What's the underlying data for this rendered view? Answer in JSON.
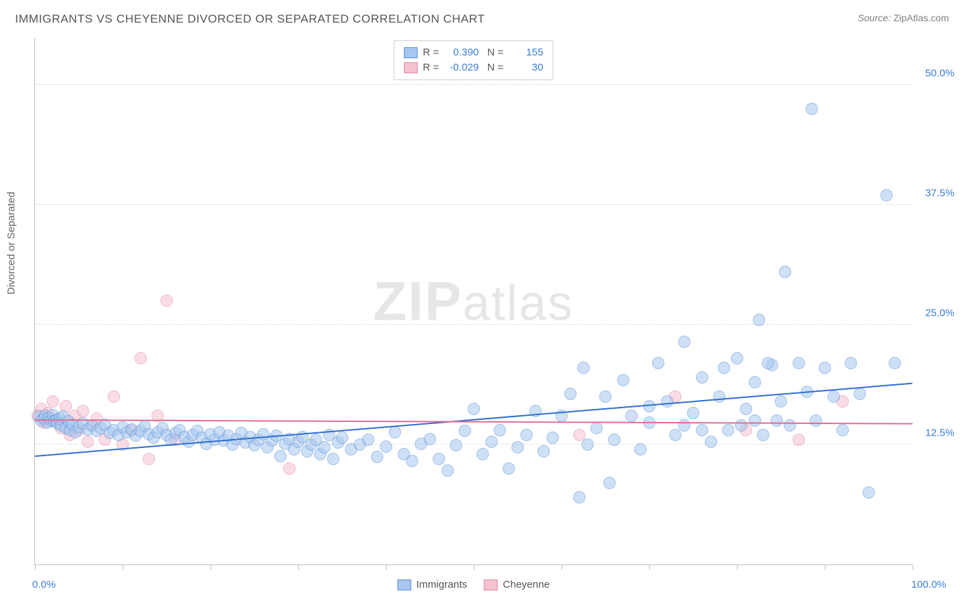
{
  "title": "IMMIGRANTS VS CHEYENNE DIVORCED OR SEPARATED CORRELATION CHART",
  "source": {
    "label": "Source:",
    "value": "ZipAtlas.com"
  },
  "ylabel": "Divorced or Separated",
  "watermark": {
    "bold": "ZIP",
    "light": "atlas"
  },
  "chart": {
    "type": "scatter",
    "xlim": [
      0,
      100
    ],
    "ylim": [
      0,
      55
    ],
    "yticks": [
      {
        "v": 12.5,
        "label": "12.5%"
      },
      {
        "v": 25.0,
        "label": "25.0%"
      },
      {
        "v": 37.5,
        "label": "37.5%"
      },
      {
        "v": 50.0,
        "label": "50.0%"
      }
    ],
    "xticks_minor_step": 10,
    "x_start_label": "0.0%",
    "x_end_label": "100.0%",
    "background_color": "#ffffff",
    "grid_color": "#dddddd",
    "axis_color": "#c0c0c0",
    "tick_label_color": "#3b7dd8",
    "marker_radius": 9,
    "marker_opacity": 0.55,
    "series": [
      {
        "key": "immigrants",
        "label": "Immigrants",
        "r": "0.390",
        "n": "155",
        "fill": "#a7c7f0",
        "stroke": "#5a8fd6",
        "trend": {
          "y0": 11.2,
          "y1": 18.8,
          "color": "#2f6fd0",
          "width": 2
        },
        "points": [
          [
            0.5,
            15.4
          ],
          [
            0.7,
            15.0
          ],
          [
            1.0,
            15.2
          ],
          [
            1.2,
            15.5
          ],
          [
            1.4,
            14.8
          ],
          [
            1.6,
            15.3
          ],
          [
            1.8,
            15.0
          ],
          [
            2.0,
            15.6
          ],
          [
            2.2,
            14.9
          ],
          [
            2.4,
            15.1
          ],
          [
            2.6,
            14.7
          ],
          [
            2.8,
            15.2
          ],
          [
            3.0,
            14.5
          ],
          [
            3.2,
            15.4
          ],
          [
            3.5,
            14.2
          ],
          [
            3.8,
            14.9
          ],
          [
            4.0,
            14.0
          ],
          [
            4.3,
            14.6
          ],
          [
            4.6,
            13.8
          ],
          [
            5.0,
            14.3
          ],
          [
            5.5,
            14.7
          ],
          [
            6.0,
            14.1
          ],
          [
            6.5,
            14.5
          ],
          [
            7.0,
            13.9
          ],
          [
            7.5,
            14.2
          ],
          [
            8.0,
            14.6
          ],
          [
            8.5,
            13.7
          ],
          [
            9.0,
            14.0
          ],
          [
            9.5,
            13.5
          ],
          [
            10.0,
            14.3
          ],
          [
            10.5,
            13.8
          ],
          [
            11.0,
            14.1
          ],
          [
            11.5,
            13.4
          ],
          [
            12.0,
            13.9
          ],
          [
            12.5,
            14.4
          ],
          [
            13.0,
            13.6
          ],
          [
            13.5,
            13.2
          ],
          [
            14.0,
            13.8
          ],
          [
            14.5,
            14.2
          ],
          [
            15.0,
            13.5
          ],
          [
            15.5,
            13.0
          ],
          [
            16.0,
            13.7
          ],
          [
            16.5,
            14.0
          ],
          [
            17.0,
            13.3
          ],
          [
            17.5,
            12.8
          ],
          [
            18.0,
            13.5
          ],
          [
            18.5,
            13.9
          ],
          [
            19.0,
            13.2
          ],
          [
            19.5,
            12.6
          ],
          [
            20.0,
            13.6
          ],
          [
            20.5,
            13.0
          ],
          [
            21.0,
            13.8
          ],
          [
            21.5,
            12.9
          ],
          [
            22.0,
            13.4
          ],
          [
            22.5,
            12.5
          ],
          [
            23.0,
            13.1
          ],
          [
            23.5,
            13.7
          ],
          [
            24.0,
            12.7
          ],
          [
            24.5,
            13.3
          ],
          [
            25.0,
            12.4
          ],
          [
            25.5,
            13.0
          ],
          [
            26.0,
            13.6
          ],
          [
            26.5,
            12.2
          ],
          [
            27.0,
            12.9
          ],
          [
            27.5,
            13.4
          ],
          [
            28.0,
            11.3
          ],
          [
            28.5,
            12.6
          ],
          [
            29.0,
            13.1
          ],
          [
            29.5,
            12.0
          ],
          [
            30.0,
            12.8
          ],
          [
            30.5,
            13.3
          ],
          [
            31.0,
            11.8
          ],
          [
            31.5,
            12.5
          ],
          [
            32.0,
            13.0
          ],
          [
            32.5,
            11.5
          ],
          [
            33.0,
            12.2
          ],
          [
            33.5,
            13.5
          ],
          [
            34.0,
            11.0
          ],
          [
            34.5,
            12.7
          ],
          [
            35.0,
            13.2
          ],
          [
            36.0,
            12.0
          ],
          [
            37.0,
            12.5
          ],
          [
            38.0,
            13.0
          ],
          [
            39.0,
            11.2
          ],
          [
            40.0,
            12.3
          ],
          [
            41.0,
            13.8
          ],
          [
            42.0,
            11.5
          ],
          [
            43.0,
            10.8
          ],
          [
            44.0,
            12.6
          ],
          [
            45.0,
            13.1
          ],
          [
            46.0,
            11.0
          ],
          [
            47.0,
            9.8
          ],
          [
            48.0,
            12.4
          ],
          [
            49.0,
            13.9
          ],
          [
            50.0,
            16.2
          ],
          [
            51.0,
            11.5
          ],
          [
            52.0,
            12.8
          ],
          [
            53.0,
            14.0
          ],
          [
            54.0,
            10.0
          ],
          [
            55.0,
            12.2
          ],
          [
            56.0,
            13.5
          ],
          [
            57.0,
            16.0
          ],
          [
            58.0,
            11.8
          ],
          [
            59.0,
            13.2
          ],
          [
            60.0,
            15.5
          ],
          [
            61.0,
            17.8
          ],
          [
            62.0,
            7.0
          ],
          [
            62.5,
            20.5
          ],
          [
            63.0,
            12.5
          ],
          [
            64.0,
            14.2
          ],
          [
            65.0,
            17.5
          ],
          [
            65.5,
            8.5
          ],
          [
            66.0,
            13.0
          ],
          [
            67.0,
            19.2
          ],
          [
            68.0,
            15.5
          ],
          [
            69.0,
            12.0
          ],
          [
            70.0,
            14.8
          ],
          [
            71.0,
            21.0
          ],
          [
            72.0,
            17.0
          ],
          [
            73.0,
            13.5
          ],
          [
            74.0,
            23.2
          ],
          [
            75.0,
            15.8
          ],
          [
            76.0,
            19.5
          ],
          [
            77.0,
            12.8
          ],
          [
            78.0,
            17.5
          ],
          [
            79.0,
            14.0
          ],
          [
            80.0,
            21.5
          ],
          [
            81.0,
            16.2
          ],
          [
            82.0,
            19.0
          ],
          [
            82.5,
            25.5
          ],
          [
            83.0,
            13.5
          ],
          [
            84.0,
            20.8
          ],
          [
            85.0,
            17.0
          ],
          [
            85.5,
            30.5
          ],
          [
            86.0,
            14.5
          ],
          [
            87.0,
            21.0
          ],
          [
            88.0,
            18.0
          ],
          [
            88.5,
            47.5
          ],
          [
            89.0,
            15.0
          ],
          [
            90.0,
            20.5
          ],
          [
            91.0,
            17.5
          ],
          [
            92.0,
            14.0
          ],
          [
            93.0,
            21.0
          ],
          [
            94.0,
            17.8
          ],
          [
            95.0,
            7.5
          ],
          [
            97.0,
            38.5
          ],
          [
            98.0,
            21.0
          ],
          [
            82.0,
            15.0
          ],
          [
            76.0,
            14.0
          ],
          [
            70.0,
            16.5
          ],
          [
            74.0,
            14.5
          ],
          [
            78.5,
            20.5
          ],
          [
            80.5,
            14.5
          ],
          [
            83.5,
            21.0
          ],
          [
            84.5,
            15.0
          ]
        ]
      },
      {
        "key": "cheyenne",
        "label": "Cheyenne",
        "r": "-0.029",
        "n": "30",
        "fill": "#f5c2cf",
        "stroke": "#e088a3",
        "trend": {
          "y0": 15.0,
          "y1": 14.6,
          "color": "#e26d94",
          "width": 2
        },
        "points": [
          [
            0.3,
            15.5
          ],
          [
            0.7,
            16.2
          ],
          [
            1.0,
            14.8
          ],
          [
            1.5,
            15.8
          ],
          [
            2.0,
            17.0
          ],
          [
            2.5,
            15.0
          ],
          [
            3.0,
            14.2
          ],
          [
            3.5,
            16.5
          ],
          [
            4.0,
            13.5
          ],
          [
            4.5,
            15.5
          ],
          [
            5.0,
            14.0
          ],
          [
            5.5,
            16.0
          ],
          [
            6.0,
            12.8
          ],
          [
            6.5,
            14.5
          ],
          [
            7.0,
            15.2
          ],
          [
            8.0,
            13.0
          ],
          [
            9.0,
            17.5
          ],
          [
            10.0,
            12.5
          ],
          [
            11.0,
            14.0
          ],
          [
            12.0,
            21.5
          ],
          [
            13.0,
            11.0
          ],
          [
            14.0,
            15.5
          ],
          [
            15.0,
            27.5
          ],
          [
            16.0,
            13.0
          ],
          [
            29.0,
            10.0
          ],
          [
            62.0,
            13.5
          ],
          [
            73.0,
            17.5
          ],
          [
            81.0,
            14.0
          ],
          [
            87.0,
            13.0
          ],
          [
            92.0,
            17.0
          ]
        ]
      }
    ]
  }
}
